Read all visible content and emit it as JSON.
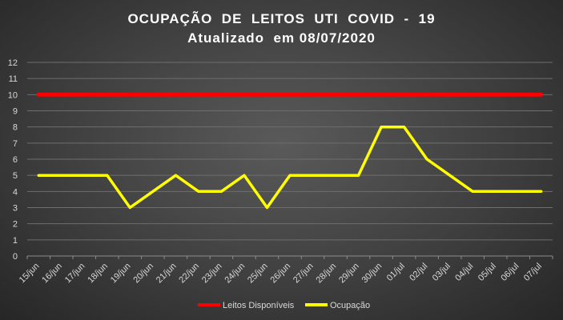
{
  "chart_data": {
    "type": "line",
    "title": "OCUPAÇÃO  DE  LEITOS  UTI  COVID  -  19",
    "subtitle": "Atualizado  em 08/07/2020",
    "categories": [
      "15/jun",
      "16/jun",
      "17/jun",
      "18/jun",
      "19/jun",
      "20/jun",
      "21/jun",
      "22/jun",
      "23/jun",
      "24/jun",
      "25/jun",
      "26/jun",
      "27/jun",
      "28/jun",
      "29/jun",
      "30/jun",
      "01/jul",
      "02/jul",
      "03/jul",
      "04/jul",
      "05/jul",
      "06/jul",
      "07/jul"
    ],
    "series": [
      {
        "name": "Leitos Disponíveis",
        "color": "#ff0000",
        "values": [
          10,
          10,
          10,
          10,
          10,
          10,
          10,
          10,
          10,
          10,
          10,
          10,
          10,
          10,
          10,
          10,
          10,
          10,
          10,
          10,
          10,
          10,
          10
        ]
      },
      {
        "name": "Ocupação",
        "color": "#ffff00",
        "values": [
          5,
          5,
          5,
          5,
          3,
          4,
          5,
          4,
          4,
          5,
          3,
          5,
          5,
          5,
          5,
          8,
          8,
          6,
          5,
          4,
          4,
          4,
          4
        ]
      }
    ],
    "yticks": [
      0,
      1,
      2,
      3,
      4,
      5,
      6,
      7,
      8,
      9,
      10,
      11,
      12
    ],
    "ylim": [
      0,
      12
    ],
    "grid": true,
    "legend_position": "bottom",
    "background": "#404040"
  }
}
